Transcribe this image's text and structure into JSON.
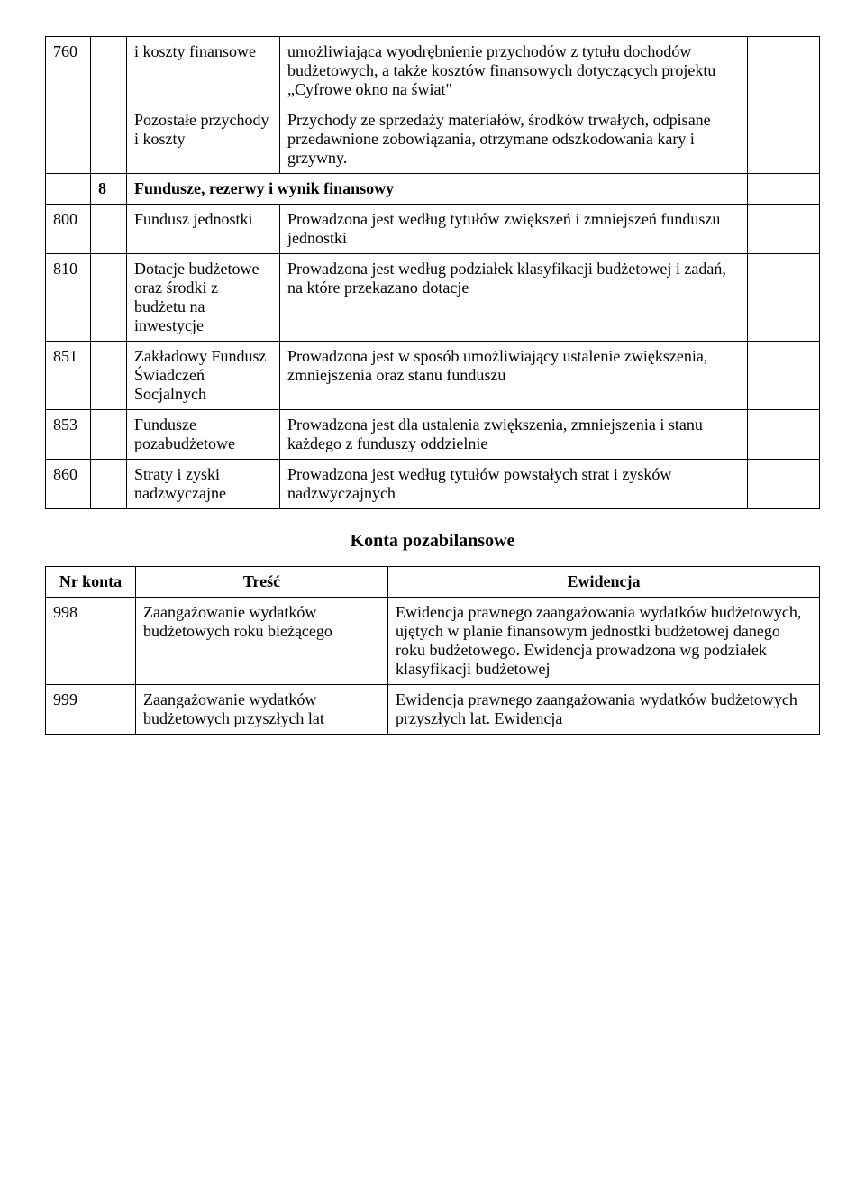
{
  "table1": {
    "rows": [
      {
        "c1": "",
        "c2": "",
        "c3": "i koszty finansowe",
        "c4": "umożliwiająca wyodrębnienie przychodów z tytułu dochodów budżetowych, a także  kosztów finansowych dotyczących projektu „Cyfrowe okno na świat\"",
        "c5": ""
      },
      {
        "c1": "760",
        "c2": "",
        "c3": "Pozostałe przychody i koszty",
        "c4": "Przychody ze sprzedaży materiałów, środków trwałych, odpisane przedawnione zobowiązania,  otrzymane odszkodowania kary i grzywny.",
        "c5": ""
      },
      {
        "c1": "",
        "c2": "8",
        "c3_4_merged": "Fundusze, rezerwy   i   wynik    finansowy",
        "c5": "",
        "bold": true
      },
      {
        "c1": "800",
        "c2": "",
        "c3": "Fundusz jednostki",
        "c4": "Prowadzona jest według tytułów zwiększeń i zmniejszeń funduszu jednostki",
        "c5": ""
      },
      {
        "c1": "810",
        "c2": "",
        "c3": "Dotacje budżetowe oraz środki z budżetu na inwestycje",
        "c4": "Prowadzona jest według podziałek klasyfikacji budżetowej i zadań, na które przekazano dotacje",
        "c5": ""
      },
      {
        "c1": "851",
        "c2": "",
        "c3": "Zakładowy Fundusz Świadczeń Socjalnych",
        "c4": "Prowadzona jest w sposób umożliwiający ustalenie zwiększenia, zmniejszenia oraz stanu funduszu",
        "c5": ""
      },
      {
        "c1": "853",
        "c2": "",
        "c3": "Fundusze pozabudżetowe",
        "c4": "Prowadzona jest dla ustalenia zwiększenia, zmniejszenia i stanu każdego z funduszy oddzielnie",
        "c5": ""
      },
      {
        "c1": "860",
        "c2": "",
        "c3": "Straty i zyski nadzwyczajne",
        "c4": "Prowadzona jest według tytułów powstałych strat i zysków nadzwyczajnych",
        "c5": ""
      }
    ]
  },
  "section2_title": "Konta pozabilansowe",
  "table2": {
    "headers": {
      "a": "Nr konta",
      "b": "Treść",
      "c": "Ewidencja"
    },
    "rows": [
      {
        "a": "998",
        "b": "Zaangażowanie wydatków budżetowych roku bieżącego",
        "c": "Ewidencja prawnego zaangażowania wydatków budżetowych, ujętych w planie finansowym jednostki budżetowej danego roku budżetowego. Ewidencja prowadzona wg podziałek klasyfikacji budżetowej"
      },
      {
        "a": "999",
        "b": "Zaangażowanie wydatków budżetowych przyszłych lat",
        "c": "Ewidencja prawnego zaangażowania wydatków budżetowych przyszłych lat. Ewidencja"
      }
    ]
  }
}
